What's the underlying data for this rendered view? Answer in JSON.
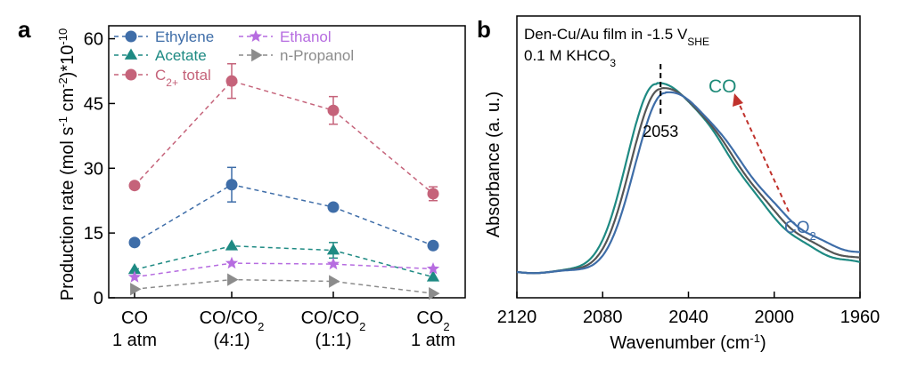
{
  "panels": {
    "a": {
      "label": "a"
    },
    "b": {
      "label": "b"
    }
  },
  "colors": {
    "ethylene": "#3E6DA8",
    "acetate": "#1E8A83",
    "ethanol": "#B66CE0",
    "propanol": "#8C8C8C",
    "c2total": "#C5637A",
    "co_arrow": "#C0322C",
    "co_label": "#1E8A78",
    "co2_label": "#3E6DA8"
  },
  "chart_data": [
    {
      "type": "line",
      "panel": "a",
      "title": "",
      "xlabel": "",
      "ylabel_parts": [
        "Production rate (mol s",
        "-1",
        " cm",
        "-2",
        ")*10",
        "-10"
      ],
      "categories": [
        {
          "line1": "CO",
          "line2": "1 atm"
        },
        {
          "line1": "CO/CO",
          "sub": "2",
          "line2": "(4:1)"
        },
        {
          "line1": "CO/CO",
          "sub": "2",
          "line2": "(1:1)"
        },
        {
          "line1": "CO",
          "sub": "2",
          "line2": "1 atm"
        }
      ],
      "ylim": [
        0,
        63
      ],
      "yticks": [
        0,
        15,
        30,
        45,
        60
      ],
      "grid": false,
      "legend_position": "top-left",
      "series": [
        {
          "key": "ethylene",
          "name": "Ethylene",
          "marker": "circle",
          "values": [
            12.8,
            26.2,
            21.0,
            12.1
          ],
          "errors": [
            0,
            4.0,
            0,
            0
          ]
        },
        {
          "key": "acetate",
          "name": "Acetate",
          "marker": "triangle-up",
          "values": [
            6.5,
            12.0,
            11.0,
            4.8
          ],
          "errors": [
            0,
            0,
            1.8,
            0
          ]
        },
        {
          "key": "ethanol",
          "name": "Ethanol",
          "marker": "star",
          "values": [
            4.8,
            8.0,
            7.8,
            6.7
          ],
          "errors": [
            0,
            0,
            0,
            0
          ]
        },
        {
          "key": "propanol",
          "name": "n-Propanol",
          "marker": "triangle-right",
          "values": [
            2.0,
            4.2,
            3.8,
            1.0
          ],
          "errors": [
            0,
            0,
            0,
            0
          ]
        },
        {
          "key": "c2total",
          "name": "C",
          "name_sub": "2+",
          "name_suffix": " total",
          "marker": "circle",
          "values": [
            26.0,
            50.2,
            43.4,
            24.1
          ],
          "errors": [
            0,
            4.0,
            3.2,
            1.6
          ]
        }
      ]
    },
    {
      "type": "line",
      "panel": "b",
      "title": "",
      "xlabel_parts": [
        "Wavenumber (cm",
        "-1",
        ")"
      ],
      "ylabel": "Absorbance (a. u.)",
      "xlim": [
        2120,
        1960
      ],
      "xticks": [
        2120,
        2080,
        2040,
        2000,
        1960
      ],
      "yticks_shown": false,
      "grid": false,
      "annotations": {
        "condition_line1": "Den-Cu/Au film in -1.5 V",
        "condition_line1_sub": "SHE",
        "condition_line2": "0.1 M KHCO",
        "condition_line2_sub": "3",
        "peak_label": "2053",
        "peak_x": 2053,
        "co_label": "CO",
        "co2_label": "CO",
        "co2_label_sub": "2"
      },
      "series": [
        {
          "color": "#1E8A83",
          "peak_x": 2055,
          "peak_y": 1.0,
          "tail_y": 0.03
        },
        {
          "color": "#555555",
          "peak_x": 2053,
          "peak_y": 0.975,
          "tail_y": 0.05
        },
        {
          "color": "#3E6DA8",
          "peak_x": 2051,
          "peak_y": 0.955,
          "tail_y": 0.08
        }
      ]
    }
  ]
}
